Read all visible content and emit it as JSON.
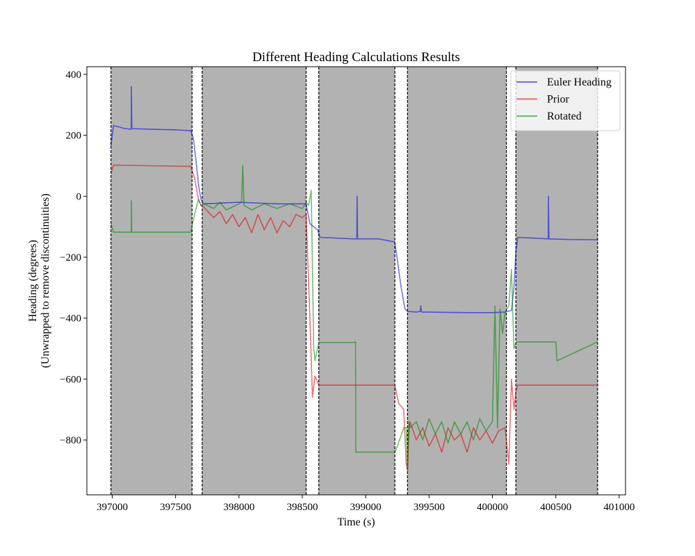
{
  "chart_data": {
    "type": "line",
    "title": "Different Heading Calculations Results",
    "xlabel": "Time (s)",
    "ylabel": [
      "Heading (degrees)",
      "(Unwrapped to remove discontinuities)"
    ],
    "xlim": [
      396800,
      401050
    ],
    "ylim": [
      -980,
      425
    ],
    "xticks": [
      397000,
      397500,
      398000,
      398500,
      399000,
      399500,
      400000,
      400500,
      401000
    ],
    "yticks": [
      400,
      200,
      0,
      -200,
      -400,
      -600,
      -800
    ],
    "grid": false,
    "legend_position": "top-right",
    "shaded_intervals": [
      [
        396990,
        397630
      ],
      [
        397710,
        398530
      ],
      [
        398630,
        399230
      ],
      [
        399330,
        400110
      ],
      [
        400185,
        400830
      ]
    ],
    "colors": {
      "shade": "#b2b2b2",
      "boundary": "#000000"
    },
    "series": [
      {
        "name": "Euler Heading",
        "color": "#0000ee",
        "x": [
          396990,
          397010,
          397100,
          397150,
          397151,
          397155,
          397300,
          397500,
          397620,
          397640,
          397660,
          397680,
          397700,
          397720,
          398000,
          398300,
          398530,
          398560,
          398620,
          398640,
          398900,
          398930,
          398932,
          398936,
          399100,
          399230,
          399250,
          399280,
          399310,
          399330,
          399400,
          399430,
          399435,
          399440,
          399800,
          400000,
          400100,
          400150,
          400170,
          400185,
          400200,
          400440,
          400442,
          400446,
          400600,
          400830
        ],
        "y": [
          165,
          232,
          222,
          220,
          360,
          222,
          220,
          218,
          215,
          190,
          120,
          40,
          -10,
          -25,
          -20,
          -25,
          -25,
          -90,
          -110,
          -135,
          -140,
          -140,
          0,
          -140,
          -140,
          -150,
          -210,
          -300,
          -370,
          -378,
          -380,
          -378,
          -360,
          -380,
          -382,
          -382,
          -380,
          -375,
          -300,
          -180,
          -135,
          -140,
          0,
          -140,
          -142,
          -143
        ]
      },
      {
        "name": "Prior",
        "color": "#e00000",
        "x": [
          396990,
          397010,
          397300,
          397620,
          397650,
          397680,
          397700,
          397720,
          397800,
          397850,
          397900,
          397950,
          398000,
          398050,
          398100,
          398150,
          398200,
          398250,
          398300,
          398350,
          398400,
          398450,
          398500,
          398530,
          398560,
          398580,
          398600,
          398630,
          399000,
          399230,
          399260,
          399300,
          399320,
          399330,
          399340,
          399350,
          399400,
          399450,
          399500,
          399550,
          399600,
          399650,
          399700,
          399750,
          399800,
          399850,
          399900,
          399950,
          400000,
          400050,
          400100,
          400130,
          400150,
          400170,
          400185,
          400200,
          400830
        ],
        "y": [
          75,
          102,
          100,
          98,
          60,
          -10,
          -30,
          -35,
          -70,
          -50,
          -90,
          -60,
          -100,
          -70,
          -120,
          -60,
          -110,
          -70,
          -120,
          -80,
          -100,
          -60,
          -70,
          -60,
          -400,
          -660,
          -590,
          -620,
          -620,
          -620,
          -680,
          -700,
          -880,
          -900,
          -780,
          -740,
          -800,
          -760,
          -820,
          -780,
          -840,
          -760,
          -800,
          -780,
          -840,
          -760,
          -800,
          -770,
          -810,
          -770,
          -760,
          -880,
          -600,
          -700,
          -640,
          -620,
          -620
        ]
      },
      {
        "name": "Rotated",
        "color": "#008800",
        "x": [
          396990,
          397010,
          397150,
          397151,
          397155,
          397300,
          397620,
          397650,
          397680,
          397700,
          397720,
          397800,
          397850,
          397900,
          398000,
          398020,
          398030,
          398040,
          398100,
          398200,
          398300,
          398400,
          398500,
          398530,
          398550,
          398570,
          398590,
          398600,
          398630,
          398900,
          398920,
          398922,
          399230,
          399250,
          399300,
          399320,
          399330,
          399340,
          399350,
          399400,
          399450,
          399500,
          399550,
          399600,
          399650,
          399700,
          399750,
          399800,
          399850,
          399900,
          399950,
          400000,
          400020,
          400040,
          400060,
          400080,
          400100,
          400130,
          400150,
          400170,
          400185,
          400200,
          400500,
          400510,
          400830
        ],
        "y": [
          -90,
          -118,
          -118,
          -15,
          -118,
          -118,
          -118,
          -60,
          -10,
          -30,
          -25,
          -40,
          -20,
          -45,
          -25,
          -20,
          100,
          -30,
          -45,
          -25,
          -40,
          -25,
          -40,
          -20,
          -30,
          20,
          -500,
          -540,
          -480,
          -480,
          -478,
          -840,
          -840,
          -820,
          -760,
          -760,
          -900,
          -740,
          -760,
          -740,
          -800,
          -730,
          -780,
          -740,
          -810,
          -740,
          -780,
          -740,
          -800,
          -730,
          -770,
          -740,
          -360,
          -760,
          -370,
          -450,
          -380,
          -360,
          -240,
          -500,
          -480,
          -478,
          -478,
          -540,
          -478
        ]
      }
    ]
  }
}
